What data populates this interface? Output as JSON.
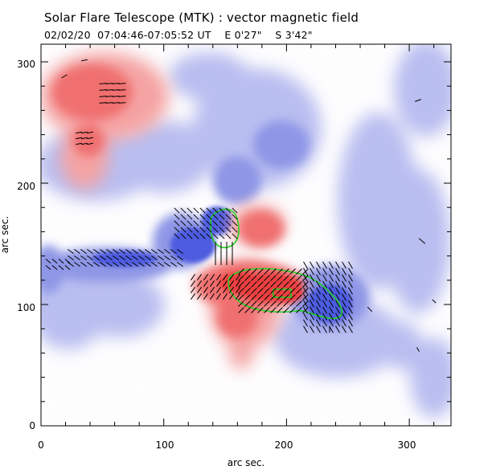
{
  "header": {
    "title": "Solar Flare Telescope (MTK) : vector magnetic field",
    "date": "02/02/20",
    "time_range": "07:04:46-07:05:52 UT",
    "pos_ew": "E 0'27\"",
    "pos_ns": "S 3'42\""
  },
  "axes": {
    "xlabel": "arc sec.",
    "ylabel": "arc sec.",
    "xlim": [
      0,
      340
    ],
    "ylim": [
      0,
      320
    ],
    "xticks": [
      "0",
      "100",
      "200",
      "300"
    ],
    "yticks": [
      "0",
      "100",
      "200",
      "300"
    ]
  },
  "colors": {
    "positive_field": "#ee4a4a",
    "negative_field": "#3f4fd6",
    "contour": "#22d422",
    "vectors": "#000000"
  },
  "icons": {
    "map": "magnetogram-map"
  }
}
